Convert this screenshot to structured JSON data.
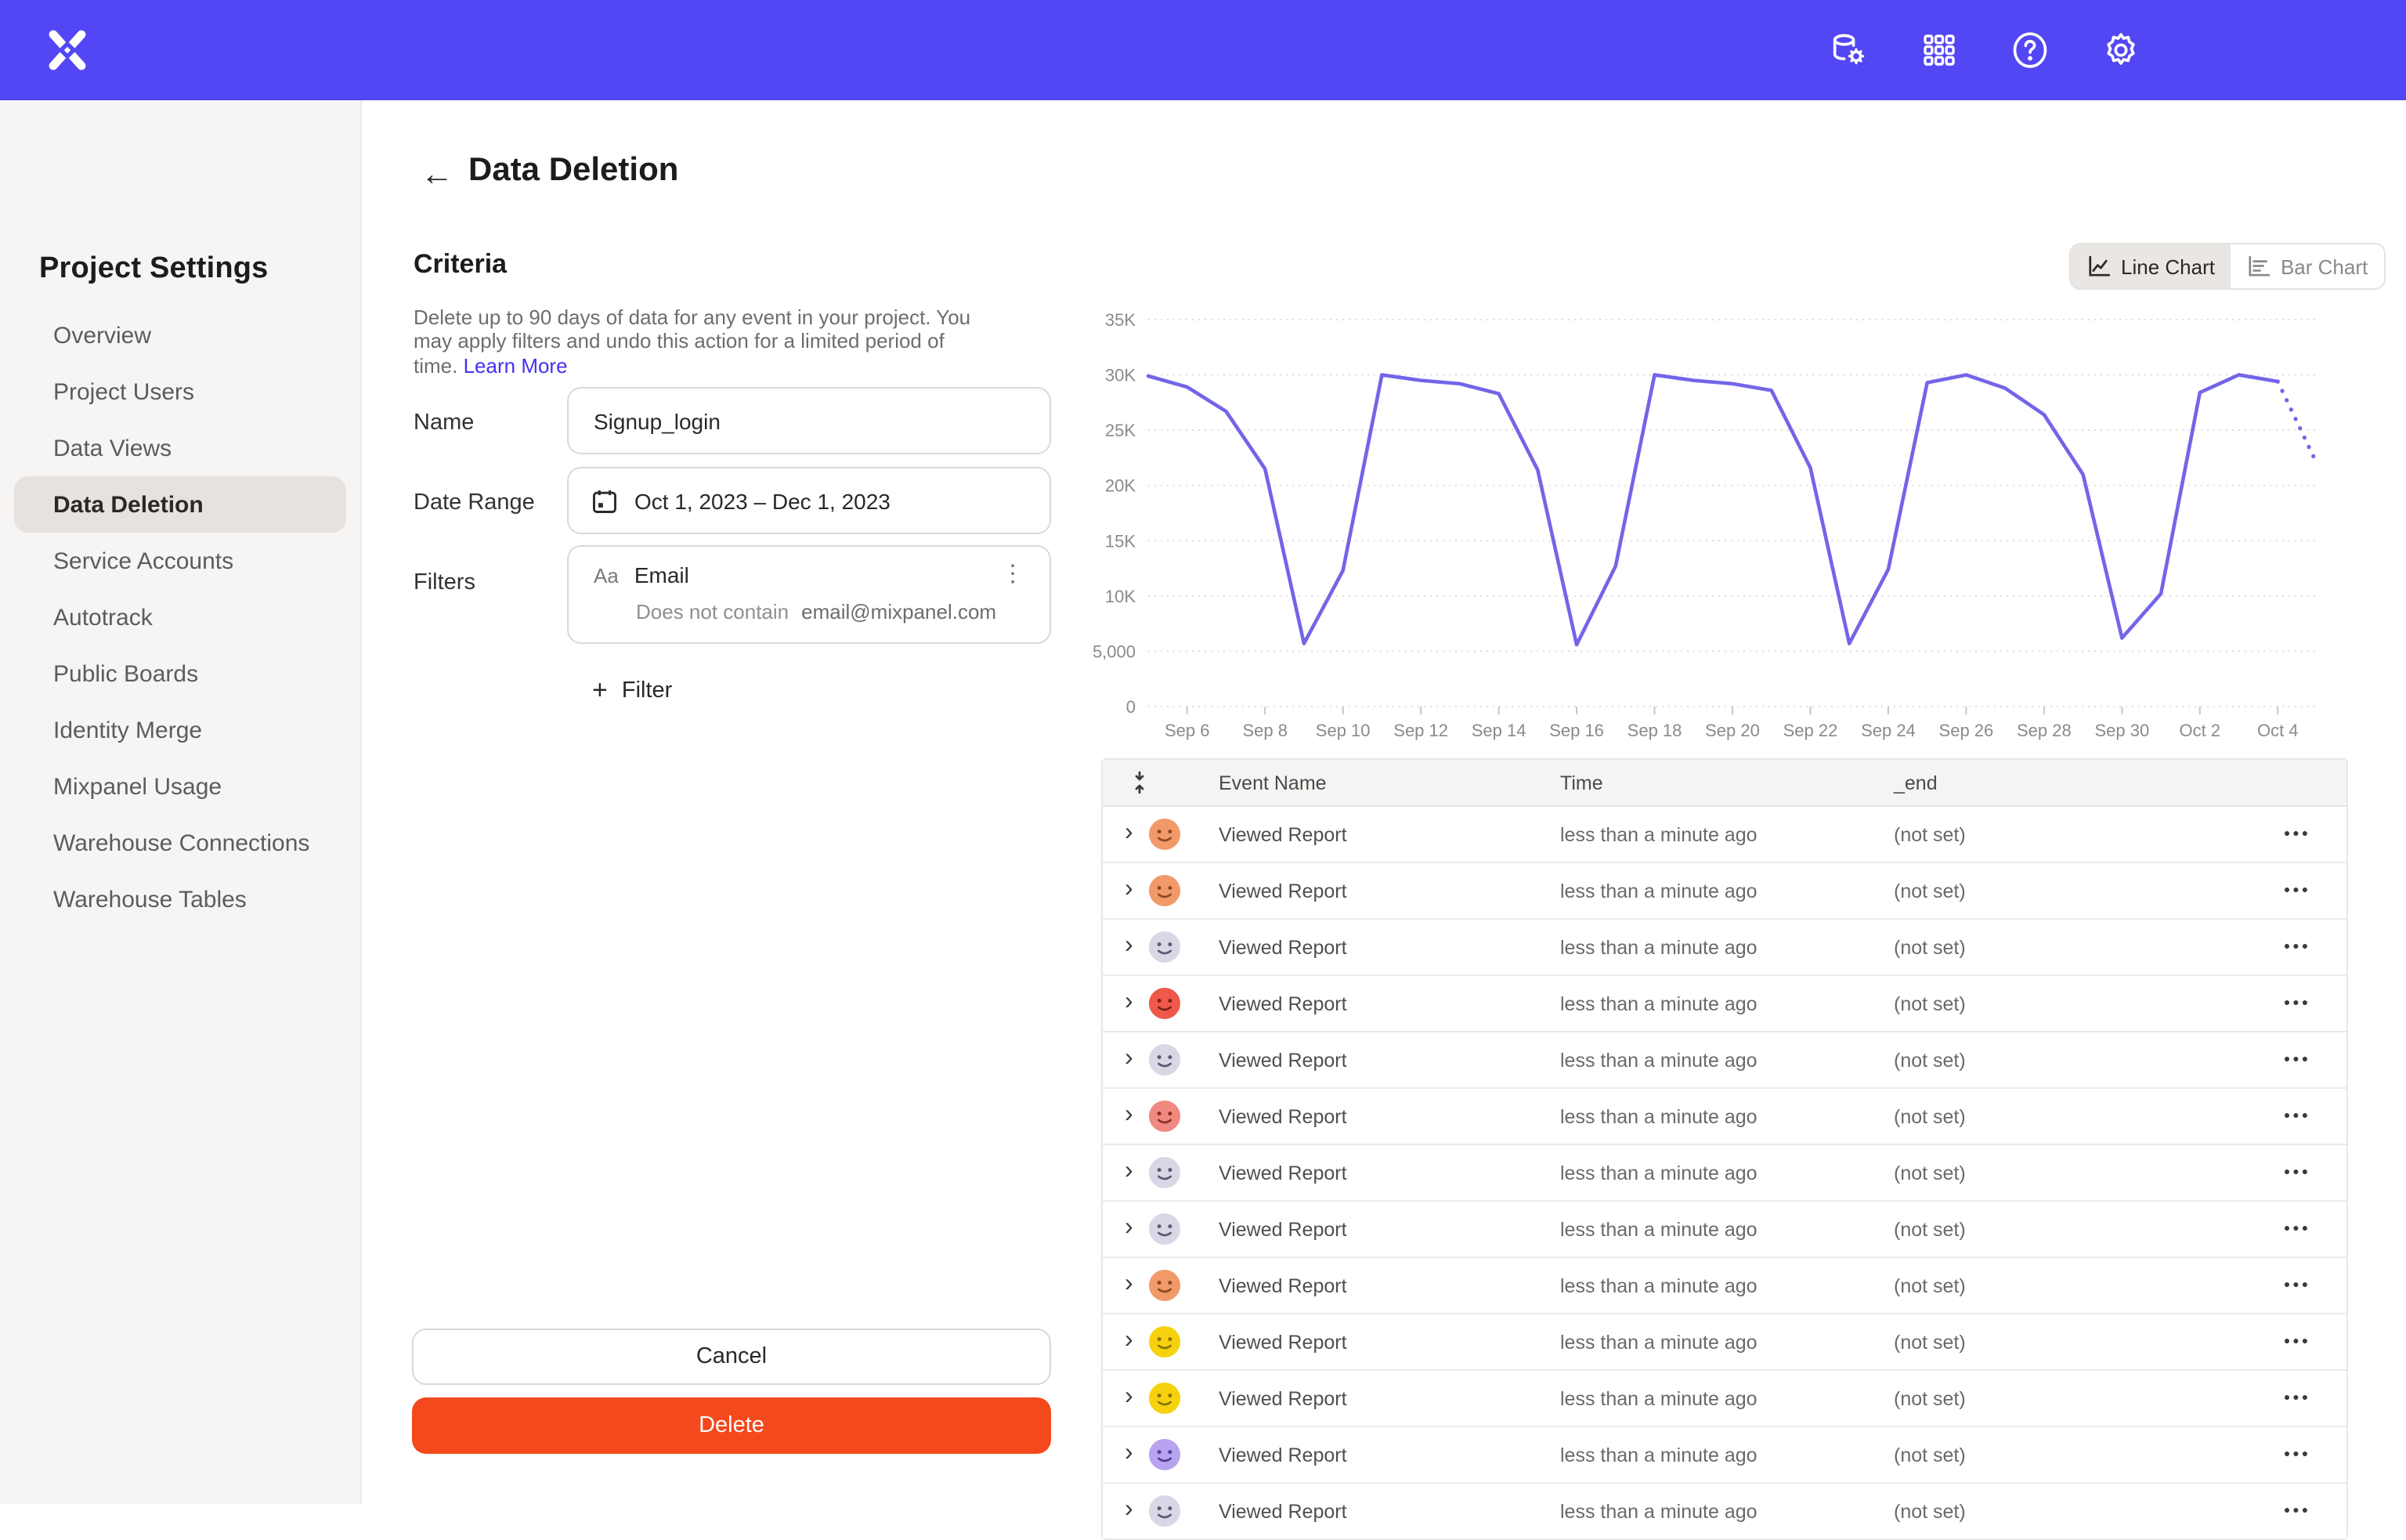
{
  "colors": {
    "header_bg": "#5346f4",
    "line": "#7265e8",
    "link": "#4531f0",
    "delete": "#f4481d",
    "sidebar_active_bg": "#e5e2e0"
  },
  "header": {
    "logo": "mixpanel-logo",
    "icons": [
      "data-management-icon",
      "apps-grid-icon",
      "help-icon",
      "settings-gear-icon"
    ]
  },
  "sidebar": {
    "title": "Project Settings",
    "items": [
      {
        "label": "Overview",
        "active": false
      },
      {
        "label": "Project Users",
        "active": false
      },
      {
        "label": "Data Views",
        "active": false
      },
      {
        "label": "Data Deletion",
        "active": true
      },
      {
        "label": "Service Accounts",
        "active": false
      },
      {
        "label": "Autotrack",
        "active": false
      },
      {
        "label": "Public Boards",
        "active": false
      },
      {
        "label": "Identity Merge",
        "active": false
      },
      {
        "label": "Mixpanel Usage",
        "active": false
      },
      {
        "label": "Warehouse Connections",
        "active": false
      },
      {
        "label": "Warehouse Tables",
        "active": false
      }
    ]
  },
  "page": {
    "title": "Data Deletion",
    "back_icon": "←"
  },
  "criteria": {
    "heading": "Criteria",
    "description": "Delete up to 90 days of data for any event in your project. You may apply filters and undo this action for a limited period of time. ",
    "learn_more": "Learn More",
    "name_label": "Name",
    "name_value": "Signup_login",
    "date_label": "Date Range",
    "date_value": "Oct 1, 2023 – Dec 1, 2023",
    "filters_label": "Filters",
    "filter": {
      "type_badge": "Aa",
      "property": "Email",
      "operator": "Does not contain",
      "value": "email@mixpanel.com"
    },
    "add_filter_label": "Filter",
    "cancel_label": "Cancel",
    "delete_label": "Delete"
  },
  "chart_toggle": {
    "line_label": "Line Chart",
    "bar_label": "Bar Chart",
    "active": "line"
  },
  "chart_data": {
    "type": "line",
    "title": "",
    "xlabel": "",
    "ylabel": "",
    "x": [
      "Sep 5",
      "Sep 6",
      "Sep 7",
      "Sep 8",
      "Sep 9",
      "Sep 10",
      "Sep 11",
      "Sep 12",
      "Sep 13",
      "Sep 14",
      "Sep 15",
      "Sep 16",
      "Sep 17",
      "Sep 18",
      "Sep 19",
      "Sep 20",
      "Sep 21",
      "Sep 22",
      "Sep 23",
      "Sep 24",
      "Sep 25",
      "Sep 26",
      "Sep 27",
      "Sep 28",
      "Sep 29",
      "Sep 30",
      "Oct 1",
      "Oct 2",
      "Oct 3",
      "Oct 4",
      "Oct 5"
    ],
    "series": [
      {
        "name": "events",
        "values": [
          29900,
          28900,
          26700,
          21500,
          5700,
          12300,
          30000,
          29500,
          29200,
          28300,
          21400,
          5600,
          12700,
          30000,
          29500,
          29200,
          28600,
          21600,
          5700,
          12400,
          29300,
          30000,
          28800,
          26400,
          21000,
          6200,
          10200,
          28400,
          30000,
          29400,
          22000
        ]
      }
    ],
    "projection_start_index": 29,
    "ylim": [
      0,
      35000
    ],
    "yticks": [
      0,
      5000,
      10000,
      15000,
      20000,
      25000,
      30000,
      35000
    ],
    "ytick_labels": [
      "0",
      "5,000",
      "10K",
      "15K",
      "20K",
      "25K",
      "30K",
      "35K"
    ],
    "xticks": [
      [
        1,
        "Sep 6"
      ],
      [
        3,
        "Sep 8"
      ],
      [
        5,
        "Sep 10"
      ],
      [
        7,
        "Sep 12"
      ],
      [
        9,
        "Sep 14"
      ],
      [
        11,
        "Sep 16"
      ],
      [
        13,
        "Sep 18"
      ],
      [
        15,
        "Sep 20"
      ],
      [
        17,
        "Sep 22"
      ],
      [
        19,
        "Sep 24"
      ],
      [
        21,
        "Sep 26"
      ],
      [
        23,
        "Sep 28"
      ],
      [
        25,
        "Sep 30"
      ],
      [
        27,
        "Oct 2"
      ],
      [
        29,
        "Oct 4"
      ]
    ],
    "grid": true,
    "legend": false,
    "line_color": "#7265e8"
  },
  "table": {
    "columns": [
      "Event Name",
      "Time",
      "_end"
    ],
    "rows": [
      {
        "event": "Viewed Report",
        "time": "less than a minute ago",
        "end": "(not set)",
        "avatar": {
          "bg": "#f2996a",
          "face": "#8a4a22"
        }
      },
      {
        "event": "Viewed Report",
        "time": "less than a minute ago",
        "end": "(not set)",
        "avatar": {
          "bg": "#f2996a",
          "face": "#8a4a22"
        }
      },
      {
        "event": "Viewed Report",
        "time": "less than a minute ago",
        "end": "(not set)",
        "avatar": {
          "bg": "#d9d6e6",
          "face": "#5c5874"
        }
      },
      {
        "event": "Viewed Report",
        "time": "less than a minute ago",
        "end": "(not set)",
        "avatar": {
          "bg": "#ef594b",
          "face": "#801f16"
        }
      },
      {
        "event": "Viewed Report",
        "time": "less than a minute ago",
        "end": "(not set)",
        "avatar": {
          "bg": "#d9d6e6",
          "face": "#5c5874"
        }
      },
      {
        "event": "Viewed Report",
        "time": "less than a minute ago",
        "end": "(not set)",
        "avatar": {
          "bg": "#f0897f",
          "face": "#8a2f26"
        }
      },
      {
        "event": "Viewed Report",
        "time": "less than a minute ago",
        "end": "(not set)",
        "avatar": {
          "bg": "#d9d6e6",
          "face": "#5c5874"
        }
      },
      {
        "event": "Viewed Report",
        "time": "less than a minute ago",
        "end": "(not set)",
        "avatar": {
          "bg": "#d9d6e6",
          "face": "#5c5874"
        }
      },
      {
        "event": "Viewed Report",
        "time": "less than a minute ago",
        "end": "(not set)",
        "avatar": {
          "bg": "#f2996a",
          "face": "#8a4a22"
        }
      },
      {
        "event": "Viewed Report",
        "time": "less than a minute ago",
        "end": "(not set)",
        "avatar": {
          "bg": "#f6d20e",
          "face": "#8a7406"
        }
      },
      {
        "event": "Viewed Report",
        "time": "less than a minute ago",
        "end": "(not set)",
        "avatar": {
          "bg": "#f6d20e",
          "face": "#8a7406"
        }
      },
      {
        "event": "Viewed Report",
        "time": "less than a minute ago",
        "end": "(not set)",
        "avatar": {
          "bg": "#b7a3ef",
          "face": "#4f3f96"
        }
      },
      {
        "event": "Viewed Report",
        "time": "less than a minute ago",
        "end": "(not set)",
        "avatar": {
          "bg": "#d9d6e6",
          "face": "#5c5874"
        }
      }
    ]
  }
}
